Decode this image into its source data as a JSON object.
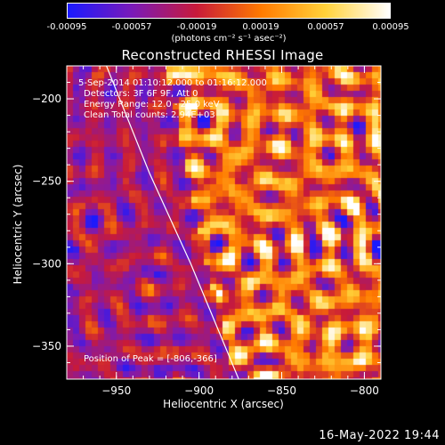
{
  "colorbar": {
    "ticks": [
      "-0.00095",
      "-0.00057",
      "-0.00019",
      "0.00019",
      "0.00057",
      "0.00095"
    ],
    "units": "(photons cm⁻² s⁻¹ asec⁻²)",
    "stops": [
      "#1a1aff",
      "#7a1ab8",
      "#c81a3a",
      "#ff7a00",
      "#ffd23a",
      "#ffffff"
    ]
  },
  "chart_data": {
    "type": "heatmap",
    "title": "Reconstructed RHESSI Image",
    "xlabel": "Heliocentric X (arcsec)",
    "ylabel": "Heliocentric Y (arcsec)",
    "xlim": [
      -980,
      -790
    ],
    "ylim": [
      -370,
      -180
    ],
    "xticks": [
      -950,
      -900,
      -850,
      -800
    ],
    "yticks": [
      -200,
      -250,
      -300,
      -350
    ],
    "xtick_labels": [
      "−950",
      "−900",
      "−850",
      "−800"
    ],
    "ytick_labels": [
      "−200",
      "−250",
      "−300",
      "−350"
    ],
    "value_range": [
      -0.00095,
      0.00095
    ],
    "peak": [
      -806,
      -366
    ],
    "limb_curve": [
      [
        -956,
        -180
      ],
      [
        -930,
        -245
      ],
      [
        -905,
        -300
      ],
      [
        -876,
        -370
      ]
    ],
    "info_lines": [
      "5-Sep-2014 01:10:12.000 to 01:16:12.000",
      "Detectors: 3F 6F 9F, Att 0",
      "Energy Range: 12.0 - 25.0 keV",
      "Clean     Total counts: 2.94E+03"
    ],
    "peak_label": "Position of Peak = [-806,-366]"
  },
  "timestamp": "16-May-2022 19:44"
}
